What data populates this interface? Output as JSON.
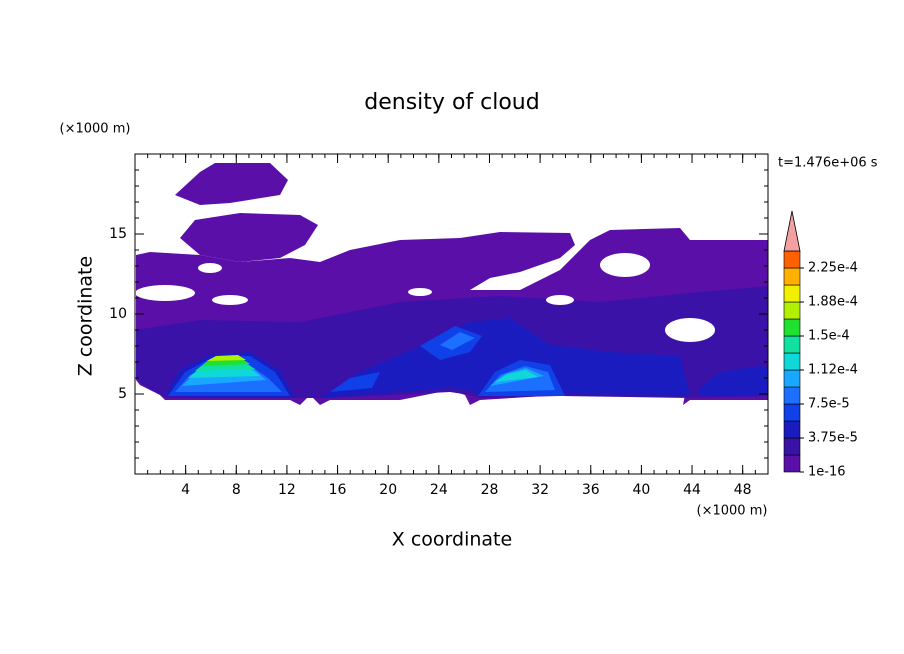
{
  "chart_data": {
    "type": "contour",
    "title": "density of cloud",
    "xlabel": "X coordinate",
    "ylabel": "Z coordinate",
    "x_unit_label": "(×1000 m)",
    "y_unit_label": "(×1000 m)",
    "annotation": "t=1.476e+06 s",
    "xlim": [
      0,
      50
    ],
    "xticks": [
      4,
      8,
      12,
      16,
      20,
      24,
      28,
      32,
      36,
      40,
      44,
      48
    ],
    "ylim": [
      0,
      20
    ],
    "yticks": [
      5,
      10,
      15
    ],
    "colorbar": {
      "levels": [
        1e-16,
        1.875e-05,
        3.75e-05,
        5.625e-05,
        7.5e-05,
        9.375e-05,
        0.0001125,
        0.00013125,
        0.00015,
        0.00016875,
        0.0001875,
        0.00020625,
        0.000225,
        0.00024375
      ],
      "colors": [
        "#5a10a8",
        "#3a12a8",
        "#1a1cc0",
        "#1040e8",
        "#1c70ff",
        "#18a8ff",
        "#10d8d8",
        "#10e0a0",
        "#20e030",
        "#b0f000",
        "#f0f000",
        "#ffb000",
        "#ff6000"
      ],
      "extend_color": "#f4a0a0",
      "ticks": [
        {
          "value": 1e-16,
          "label": "1e-16"
        },
        {
          "value": 3.75e-05,
          "label": "3.75e-5"
        },
        {
          "value": 7.5e-05,
          "label": "7.5e-5"
        },
        {
          "value": 0.0001125,
          "label": "1.12e-4"
        },
        {
          "value": 0.00015,
          "label": "1.5e-4"
        },
        {
          "value": 0.0001875,
          "label": "1.88e-4"
        },
        {
          "value": 0.000225,
          "label": "2.25e-4"
        }
      ]
    }
  }
}
